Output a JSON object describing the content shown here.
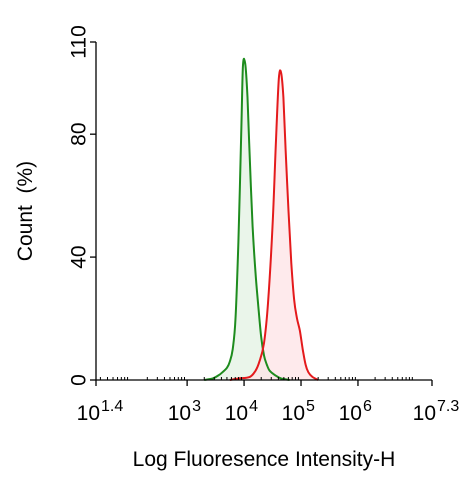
{
  "chart_data": {
    "type": "area",
    "title": "",
    "xlabel": "Log Fluoresence Intensity-H",
    "ylabel": "Count  (%)",
    "xscale": "log",
    "xlim_log10": [
      1.4,
      7.3
    ],
    "ylim": [
      0,
      110
    ],
    "grid": false,
    "legend": "none",
    "x_ticks": [
      {
        "base": "10",
        "exp": "1.4",
        "value": 1.4
      },
      {
        "base": "10",
        "exp": "3",
        "value": 3
      },
      {
        "base": "10",
        "exp": "4",
        "value": 4
      },
      {
        "base": "10",
        "exp": "5",
        "value": 5
      },
      {
        "base": "10",
        "exp": "6",
        "value": 6
      },
      {
        "base": "10",
        "exp": "7.3",
        "value": 7.3
      }
    ],
    "y_ticks": [
      {
        "label": "0",
        "value": 0
      },
      {
        "label": "40",
        "value": 40
      },
      {
        "label": "80",
        "value": 80
      },
      {
        "label": "110",
        "value": 110
      }
    ],
    "series": [
      {
        "color": "#1e8c1e",
        "fill": "#e3f2e3",
        "log10_x": [
          3.3,
          3.45,
          3.55,
          3.62,
          3.7,
          3.75,
          3.8,
          3.85,
          3.9,
          3.95,
          3.98,
          4.02,
          4.06,
          4.1,
          4.15,
          4.2,
          4.25,
          4.3,
          4.35,
          4.4,
          4.45,
          4.55,
          4.65,
          4.8
        ],
        "values": [
          0,
          0.5,
          1.5,
          2.5,
          4,
          6,
          10,
          20,
          45,
          80,
          102,
          103,
          92,
          72,
          50,
          35,
          24,
          14,
          8,
          5,
          3,
          1.5,
          0.5,
          0
        ]
      },
      {
        "color": "#e41a1c",
        "fill": "#fde3e6",
        "log10_x": [
          3.75,
          3.9,
          4.1,
          4.2,
          4.27,
          4.35,
          4.42,
          4.5,
          4.56,
          4.61,
          4.65,
          4.69,
          4.73,
          4.78,
          4.83,
          4.88,
          4.93,
          4.98,
          5.03,
          5.08,
          5.13,
          5.2,
          5.3
        ],
        "values": [
          0,
          0.5,
          1,
          3,
          6,
          12,
          25,
          50,
          78,
          98,
          100,
          92,
          75,
          55,
          38,
          26,
          20,
          16,
          10,
          5,
          2.5,
          1,
          0
        ]
      }
    ]
  }
}
